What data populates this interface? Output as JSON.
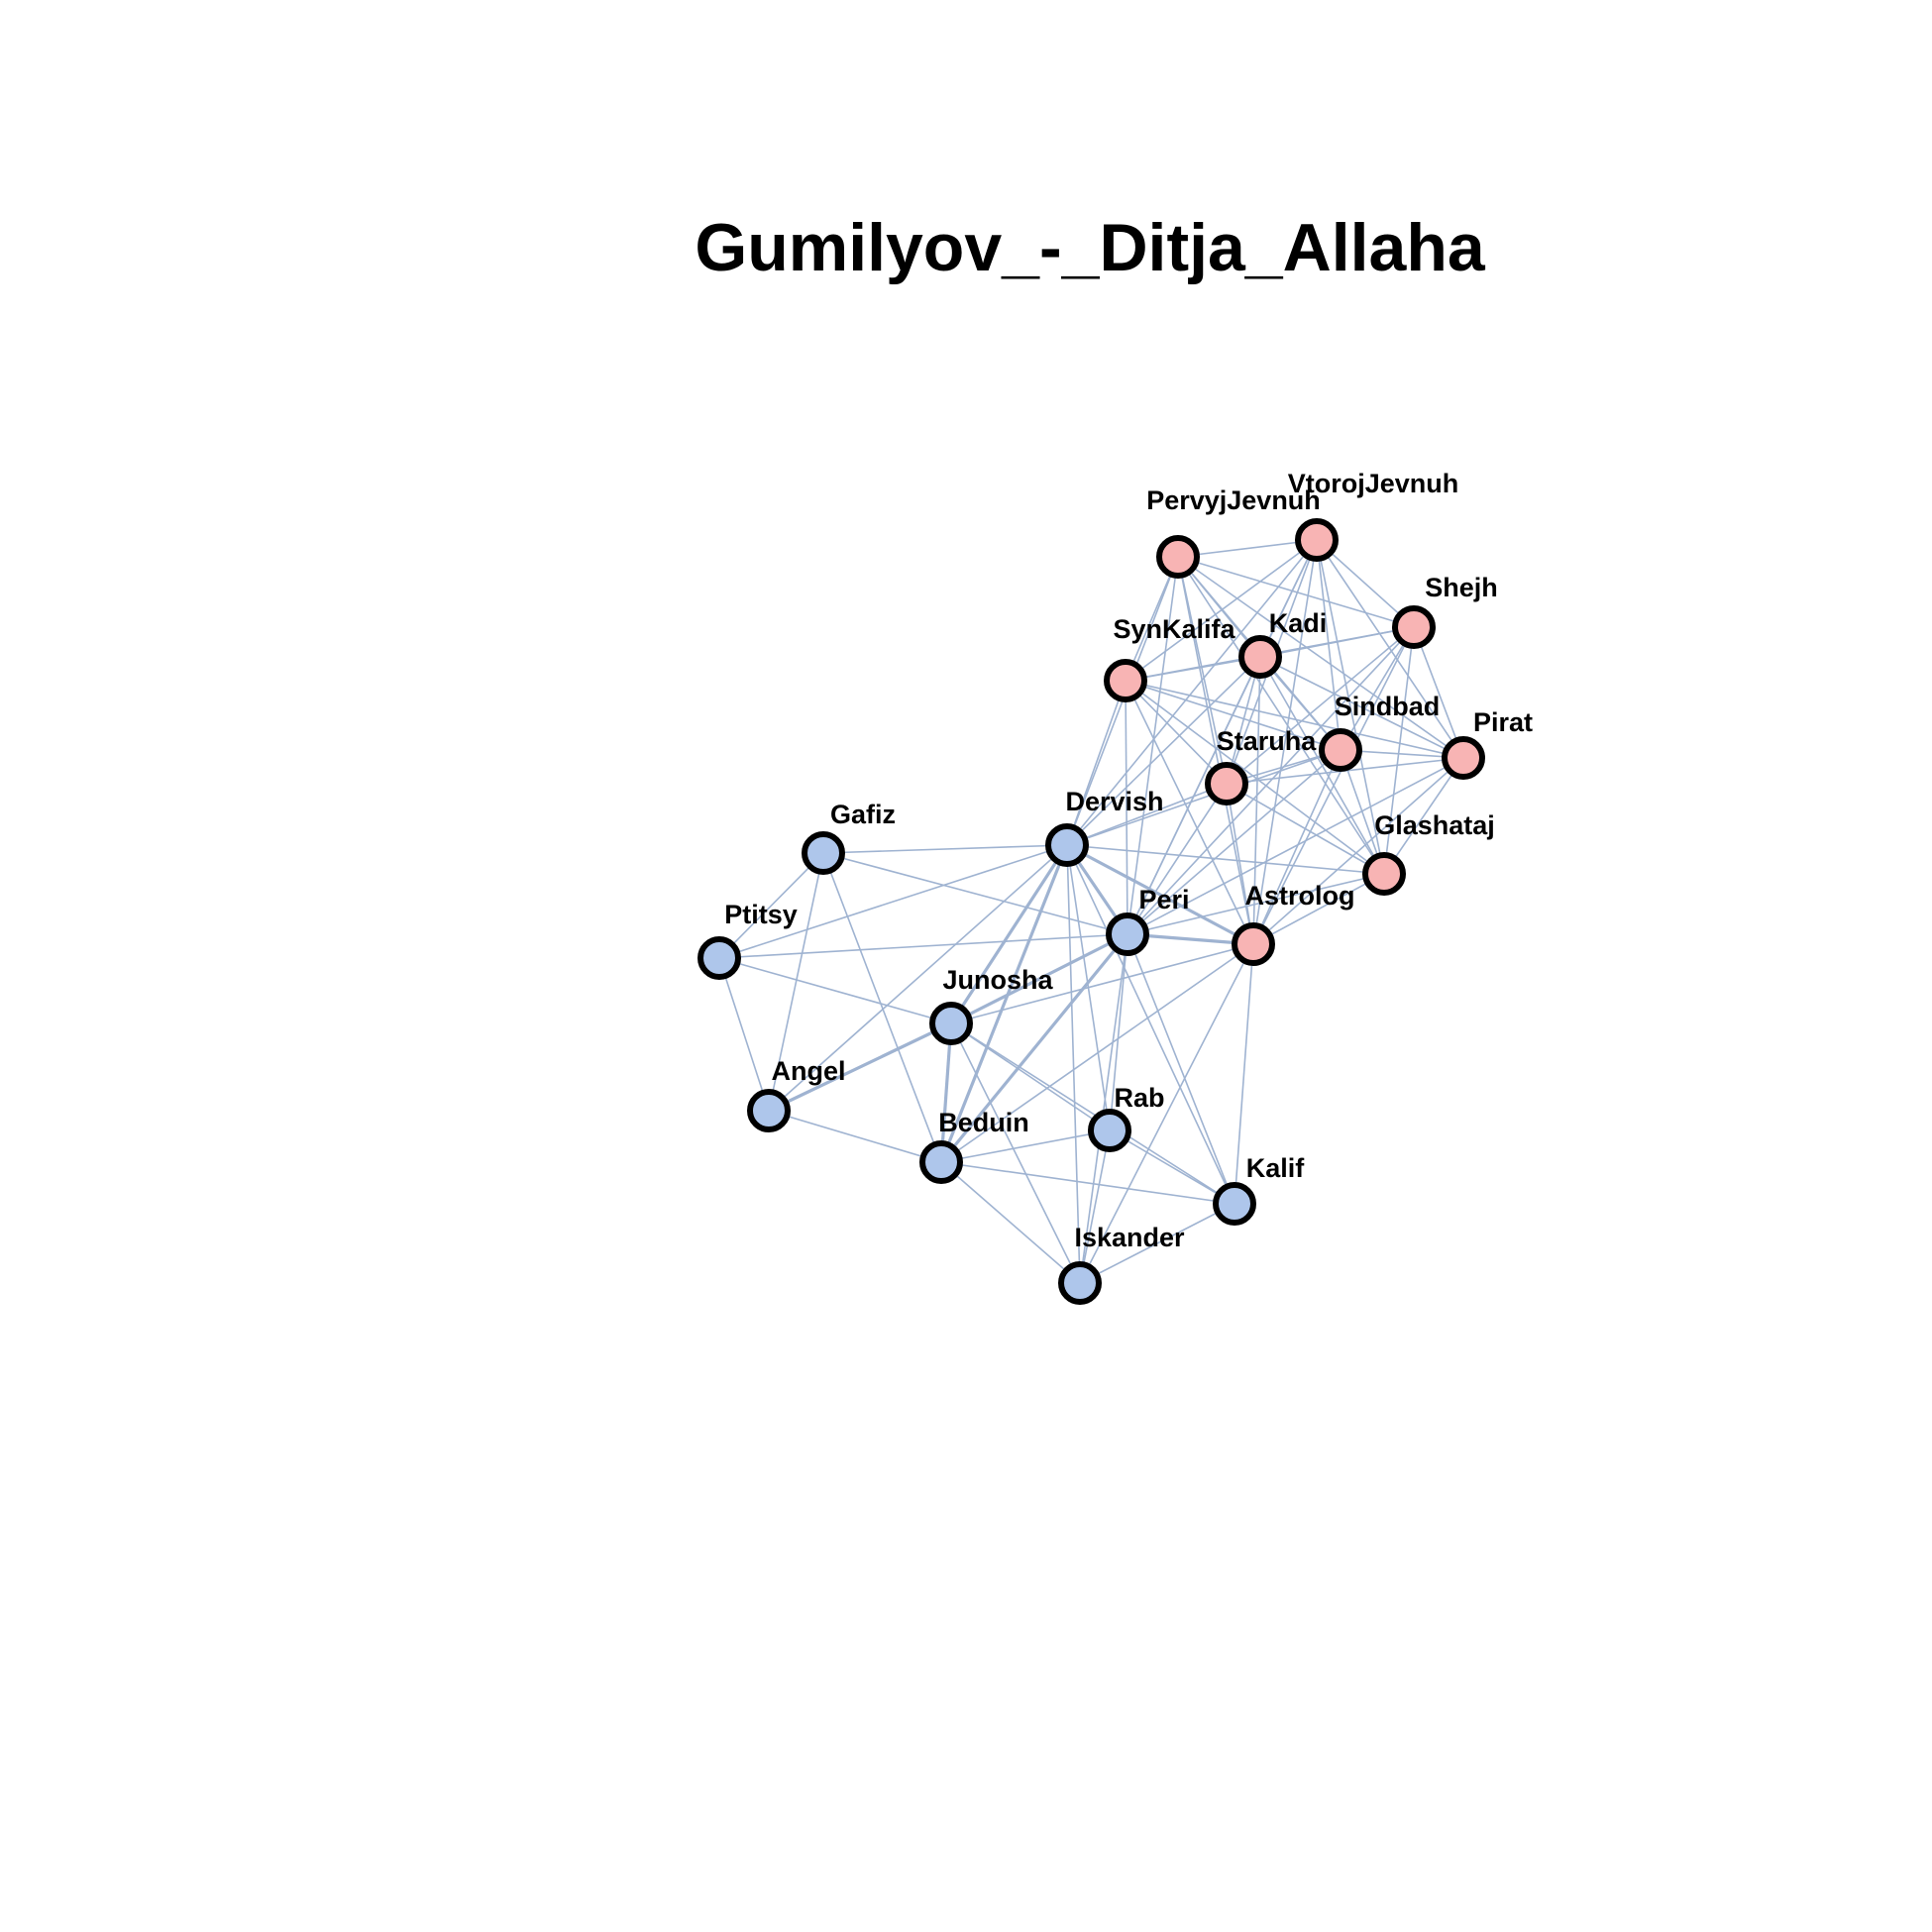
{
  "title": "Gumilyov_-_Ditja_Allaha",
  "colors": {
    "group_a": "#f8b4b4",
    "group_b": "#aec6eb",
    "edge": "#9fb3d1",
    "outline": "#000000"
  },
  "nodes": [
    {
      "id": "PervyjJevnuh",
      "label": "PervyjJevnuh",
      "group": "a"
    },
    {
      "id": "VtorojJevnuh",
      "label": "VtorojJevnuh",
      "group": "a"
    },
    {
      "id": "Shejh",
      "label": "Shejh",
      "group": "a"
    },
    {
      "id": "SynKalifa",
      "label": "SynKalifa",
      "group": "a"
    },
    {
      "id": "Kadi",
      "label": "Kadi",
      "group": "a"
    },
    {
      "id": "Sindbad",
      "label": "Sindbad",
      "group": "a"
    },
    {
      "id": "Pirat",
      "label": "Pirat",
      "group": "a"
    },
    {
      "id": "Staruha",
      "label": "Staruha",
      "group": "a"
    },
    {
      "id": "Glashataj",
      "label": "Glashataj",
      "group": "a"
    },
    {
      "id": "Astrolog",
      "label": "Astrolog",
      "group": "a"
    },
    {
      "id": "Dervish",
      "label": "Dervish",
      "group": "b"
    },
    {
      "id": "Gafiz",
      "label": "Gafiz",
      "group": "b"
    },
    {
      "id": "Peri",
      "label": "Peri",
      "group": "b"
    },
    {
      "id": "Ptitsy",
      "label": "Ptitsy",
      "group": "b"
    },
    {
      "id": "Junosha",
      "label": "Junosha",
      "group": "b"
    },
    {
      "id": "Angel",
      "label": "Angel",
      "group": "b"
    },
    {
      "id": "Beduin",
      "label": "Beduin",
      "group": "b"
    },
    {
      "id": "Rab",
      "label": "Rab",
      "group": "b"
    },
    {
      "id": "Kalif",
      "label": "Kalif",
      "group": "b"
    },
    {
      "id": "Iskander",
      "label": "Iskander",
      "group": "b"
    }
  ],
  "edges": [
    [
      "PervyjJevnuh",
      "VtorojJevnuh",
      1
    ],
    [
      "PervyjJevnuh",
      "Kadi",
      1
    ],
    [
      "PervyjJevnuh",
      "Shejh",
      1
    ],
    [
      "PervyjJevnuh",
      "Sindbad",
      1
    ],
    [
      "PervyjJevnuh",
      "Staruha",
      1
    ],
    [
      "PervyjJevnuh",
      "Astrolog",
      1
    ],
    [
      "PervyjJevnuh",
      "Dervish",
      1
    ],
    [
      "PervyjJevnuh",
      "Pirat",
      1
    ],
    [
      "PervyjJevnuh",
      "Glashataj",
      1
    ],
    [
      "PervyjJevnuh",
      "SynKalifa",
      1
    ],
    [
      "PervyjJevnuh",
      "Peri",
      1
    ],
    [
      "VtorojJevnuh",
      "Kadi",
      1
    ],
    [
      "VtorojJevnuh",
      "Shejh",
      1
    ],
    [
      "VtorojJevnuh",
      "SynKalifa",
      1
    ],
    [
      "VtorojJevnuh",
      "Sindbad",
      1
    ],
    [
      "VtorojJevnuh",
      "Staruha",
      1
    ],
    [
      "VtorojJevnuh",
      "Astrolog",
      1
    ],
    [
      "VtorojJevnuh",
      "Pirat",
      1
    ],
    [
      "VtorojJevnuh",
      "Glashataj",
      1
    ],
    [
      "VtorojJevnuh",
      "Dervish",
      1
    ],
    [
      "VtorojJevnuh",
      "Peri",
      1
    ],
    [
      "Shejh",
      "Kadi",
      1
    ],
    [
      "Shejh",
      "SynKalifa",
      1
    ],
    [
      "Shejh",
      "Sindbad",
      1
    ],
    [
      "Shejh",
      "Staruha",
      1
    ],
    [
      "Shejh",
      "Astrolog",
      1
    ],
    [
      "Shejh",
      "Pirat",
      1
    ],
    [
      "Shejh",
      "Glashataj",
      1
    ],
    [
      "Shejh",
      "Peri",
      1
    ],
    [
      "SynKalifa",
      "Kadi",
      1
    ],
    [
      "SynKalifa",
      "Sindbad",
      1
    ],
    [
      "SynKalifa",
      "Staruha",
      1
    ],
    [
      "SynKalifa",
      "Pirat",
      1
    ],
    [
      "SynKalifa",
      "Glashataj",
      1
    ],
    [
      "SynKalifa",
      "Astrolog",
      1
    ],
    [
      "SynKalifa",
      "Dervish",
      1
    ],
    [
      "SynKalifa",
      "Peri",
      1
    ],
    [
      "Kadi",
      "Sindbad",
      1
    ],
    [
      "Kadi",
      "Staruha",
      1
    ],
    [
      "Kadi",
      "Pirat",
      1
    ],
    [
      "Kadi",
      "Glashataj",
      1
    ],
    [
      "Kadi",
      "Astrolog",
      1
    ],
    [
      "Kadi",
      "Dervish",
      1
    ],
    [
      "Kadi",
      "Peri",
      1
    ],
    [
      "Sindbad",
      "Pirat",
      1
    ],
    [
      "Sindbad",
      "Staruha",
      1
    ],
    [
      "Sindbad",
      "Glashataj",
      1
    ],
    [
      "Sindbad",
      "Astrolog",
      1
    ],
    [
      "Sindbad",
      "Dervish",
      1
    ],
    [
      "Sindbad",
      "Peri",
      1
    ],
    [
      "Pirat",
      "Staruha",
      1
    ],
    [
      "Pirat",
      "Glashataj",
      1
    ],
    [
      "Pirat",
      "Astrolog",
      1
    ],
    [
      "Pirat",
      "Peri",
      1
    ],
    [
      "Staruha",
      "Glashataj",
      1
    ],
    [
      "Staruha",
      "Astrolog",
      1
    ],
    [
      "Staruha",
      "Dervish",
      1
    ],
    [
      "Staruha",
      "Peri",
      1
    ],
    [
      "Glashataj",
      "Astrolog",
      1
    ],
    [
      "Glashataj",
      "Dervish",
      1
    ],
    [
      "Glashataj",
      "Peri",
      1
    ],
    [
      "Astrolog",
      "Dervish",
      2
    ],
    [
      "Astrolog",
      "Peri",
      2
    ],
    [
      "Astrolog",
      "Junosha",
      1
    ],
    [
      "Astrolog",
      "Beduin",
      1
    ],
    [
      "Astrolog",
      "Kalif",
      1
    ],
    [
      "Astrolog",
      "Iskander",
      1
    ],
    [
      "Dervish",
      "Peri",
      2
    ],
    [
      "Dervish",
      "Gafiz",
      1
    ],
    [
      "Dervish",
      "Ptitsy",
      1
    ],
    [
      "Dervish",
      "Junosha",
      2
    ],
    [
      "Dervish",
      "Angel",
      1
    ],
    [
      "Dervish",
      "Beduin",
      2
    ],
    [
      "Dervish",
      "Rab",
      1
    ],
    [
      "Dervish",
      "Kalif",
      1
    ],
    [
      "Dervish",
      "Iskander",
      1
    ],
    [
      "Peri",
      "Gafiz",
      1
    ],
    [
      "Peri",
      "Ptitsy",
      1
    ],
    [
      "Peri",
      "Junosha",
      2
    ],
    [
      "Peri",
      "Beduin",
      2
    ],
    [
      "Peri",
      "Rab",
      1
    ],
    [
      "Peri",
      "Iskander",
      1
    ],
    [
      "Peri",
      "Kalif",
      1
    ],
    [
      "Gafiz",
      "Ptitsy",
      1
    ],
    [
      "Gafiz",
      "Angel",
      1
    ],
    [
      "Gafiz",
      "Beduin",
      1
    ],
    [
      "Ptitsy",
      "Junosha",
      1
    ],
    [
      "Ptitsy",
      "Angel",
      1
    ],
    [
      "Junosha",
      "Angel",
      2
    ],
    [
      "Junosha",
      "Beduin",
      2
    ],
    [
      "Junosha",
      "Rab",
      1
    ],
    [
      "Junosha",
      "Kalif",
      1
    ],
    [
      "Junosha",
      "Iskander",
      1
    ],
    [
      "Angel",
      "Beduin",
      1
    ],
    [
      "Beduin",
      "Rab",
      1
    ],
    [
      "Beduin",
      "Kalif",
      1
    ],
    [
      "Beduin",
      "Iskander",
      1
    ],
    [
      "Rab",
      "Kalif",
      1
    ],
    [
      "Rab",
      "Iskander",
      1
    ],
    [
      "Kalif",
      "Iskander",
      1
    ]
  ]
}
